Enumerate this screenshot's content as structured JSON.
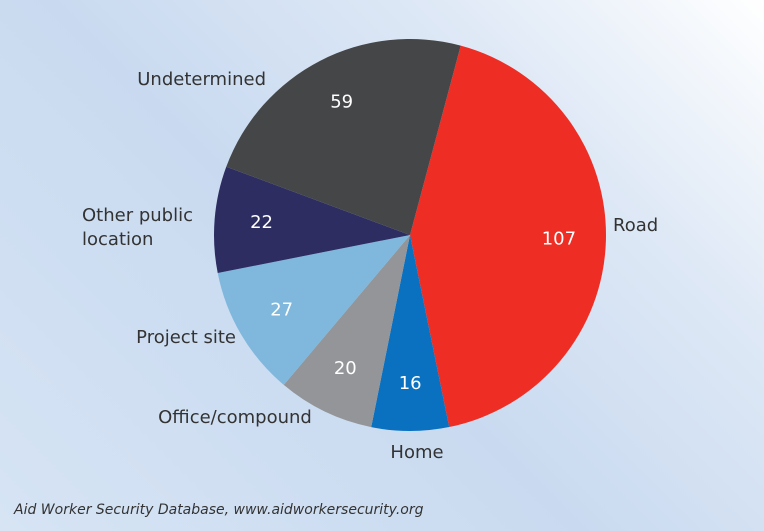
{
  "chart_data": {
    "type": "pie",
    "categories": [
      "Road",
      "Home",
      "Office/compound",
      "Project site",
      "Other public location",
      "Undetermined"
    ],
    "values": [
      107,
      16,
      20,
      27,
      22,
      59
    ],
    "colors": [
      "#ee2e24",
      "#0a71c0",
      "#939598",
      "#7fb8dc",
      "#2e2d62",
      "#454648"
    ],
    "source": "Aid Worker Security Database, www.aidworkersecurity.org"
  }
}
